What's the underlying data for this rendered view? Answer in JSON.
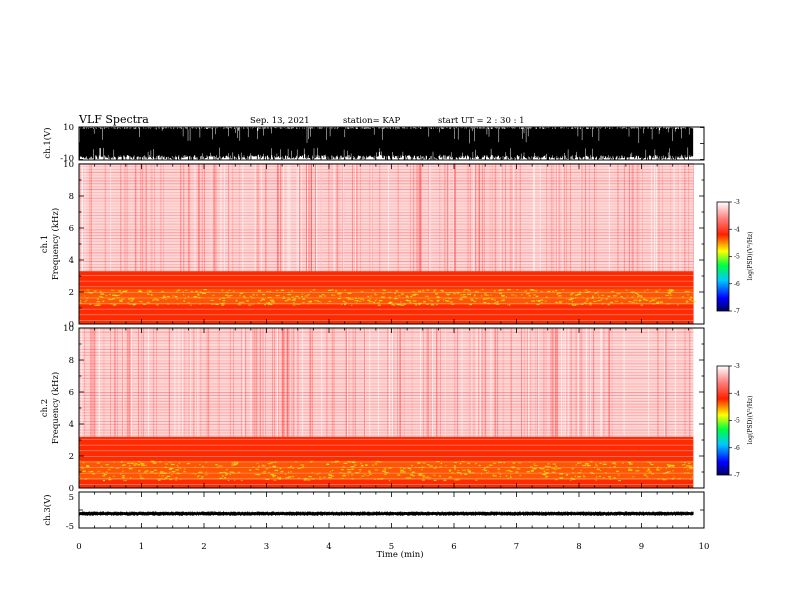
{
  "header": {
    "title": "VLF Spectra",
    "date": "Sep. 13, 2021",
    "station": "station= KAP",
    "start": "start  UT =  2 : 30 : 1"
  },
  "chart_data": [
    {
      "type": "line",
      "panel": "ch1-waveform",
      "ylabel": "ch.1(V)",
      "ylim": [
        -10,
        10
      ],
      "yticks": [
        "10",
        "-10"
      ],
      "xlim": [
        0,
        10
      ],
      "description_values": {
        "signal_fill": "saturated broadband noise filling most of range",
        "duration_min": 9.83
      }
    },
    {
      "type": "heatmap",
      "panel": "ch1-spectrogram",
      "ylabel": "ch.1\nFrequency (kHz)",
      "ylabel_line1": "ch.1",
      "ylabel_line2": "Frequency (kHz)",
      "ylim": [
        0,
        10
      ],
      "yticks": [
        "0",
        "2",
        "4",
        "6",
        "8",
        "10"
      ],
      "xlim": [
        0,
        10
      ],
      "bands": [
        {
          "from_khz": 0,
          "to_khz": 3.3,
          "level": "high"
        },
        {
          "from_khz": 1.2,
          "to_khz": 2.2,
          "level": "peak"
        },
        {
          "from_khz": 3.3,
          "to_khz": 10,
          "level": "low"
        }
      ]
    },
    {
      "type": "heatmap",
      "panel": "ch2-spectrogram",
      "ylabel": "ch.2\nFrequency (kHz)",
      "ylabel_line1": "ch.2",
      "ylabel_line2": "Frequency (kHz)",
      "ylim": [
        0,
        10
      ],
      "yticks": [
        "0",
        "2",
        "4",
        "6",
        "8",
        "10"
      ],
      "xlim": [
        0,
        10
      ],
      "bands": [
        {
          "from_khz": 0,
          "to_khz": 3.2,
          "level": "high"
        },
        {
          "from_khz": 0.5,
          "to_khz": 1.7,
          "level": "peak"
        },
        {
          "from_khz": 3.2,
          "to_khz": 10,
          "level": "low"
        }
      ]
    },
    {
      "type": "line",
      "panel": "ch3-waveform",
      "ylabel": "ch.3(V)",
      "ylim": [
        -5,
        5
      ],
      "yticks": [
        "5",
        "-5"
      ],
      "xlim": [
        0,
        10
      ],
      "xlabel": "Time  (min)",
      "xticks": [
        "0",
        "1",
        "2",
        "3",
        "4",
        "5",
        "6",
        "7",
        "8",
        "9",
        "10"
      ],
      "signal_level_v": -1
    }
  ],
  "colorbars": [
    {
      "label": "log(PSD)(V²/Hz)",
      "ticks": [
        "-3",
        "-4",
        "-5",
        "-6",
        "-7"
      ],
      "range": [
        -7,
        -3
      ]
    },
    {
      "label": "log(PSD)(V²/Hz)",
      "ticks": [
        "-3",
        "-4",
        "-5",
        "-6",
        "-7"
      ],
      "range": [
        -7,
        -3
      ]
    }
  ],
  "colors": {
    "high": "#ff2a00",
    "peak": "#e8e800",
    "low": "#ff4040",
    "trace": "#000000"
  }
}
